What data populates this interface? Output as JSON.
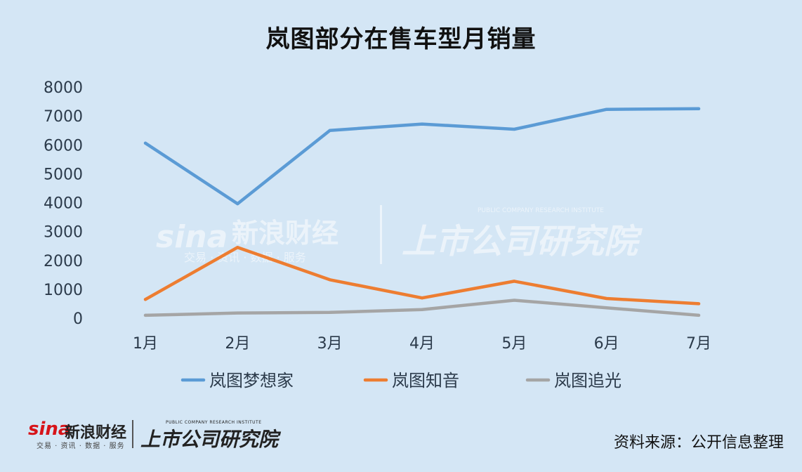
{
  "title": "岚图部分在售车型月销量",
  "chart_data": {
    "type": "line",
    "title": "岚图部分在售车型月销量",
    "categories": [
      "1月",
      "2月",
      "3月",
      "4月",
      "5月",
      "6月",
      "7月"
    ],
    "series": [
      {
        "name": "岚图梦想家",
        "values": [
          6060,
          3960,
          6500,
          6720,
          6540,
          7230,
          7250
        ],
        "color": "#5b9bd5"
      },
      {
        "name": "岚图知音",
        "values": [
          650,
          2450,
          1330,
          700,
          1280,
          680,
          500
        ],
        "color": "#ed7d31"
      },
      {
        "name": "岚图追光",
        "values": [
          100,
          180,
          200,
          300,
          620,
          360,
          100
        ],
        "color": "#a5a5a5"
      }
    ],
    "y_ticks": [
      "0",
      "1000",
      "2000",
      "3000",
      "4000",
      "5000",
      "6000",
      "7000",
      "8000"
    ],
    "ylim": [
      0,
      8000
    ],
    "grid": false,
    "legend_position": "bottom",
    "xlabel": "",
    "ylabel": ""
  },
  "watermark": {
    "sina": "sina",
    "sina_cn": "新浪财经",
    "sina_sub": "交易 · 资讯 · 数据 · 服务",
    "ssgs": "上市公司研究院",
    "ssgs_en": "PUBLIC COMPANY RESEARCH INSTITUTE"
  },
  "footer": {
    "sina": "sina",
    "sina_cn": "新浪财经",
    "sina_sub": "交易 · 资讯 · 数据 · 服务",
    "ssgs": "上市公司研究院",
    "ssgs_en": "PUBLIC COMPANY RESEARCH INSTITUTE",
    "source": "资料来源：公开信息整理"
  },
  "colors": {
    "background": "#d4e6f5",
    "brand_red": "#d7141a"
  }
}
